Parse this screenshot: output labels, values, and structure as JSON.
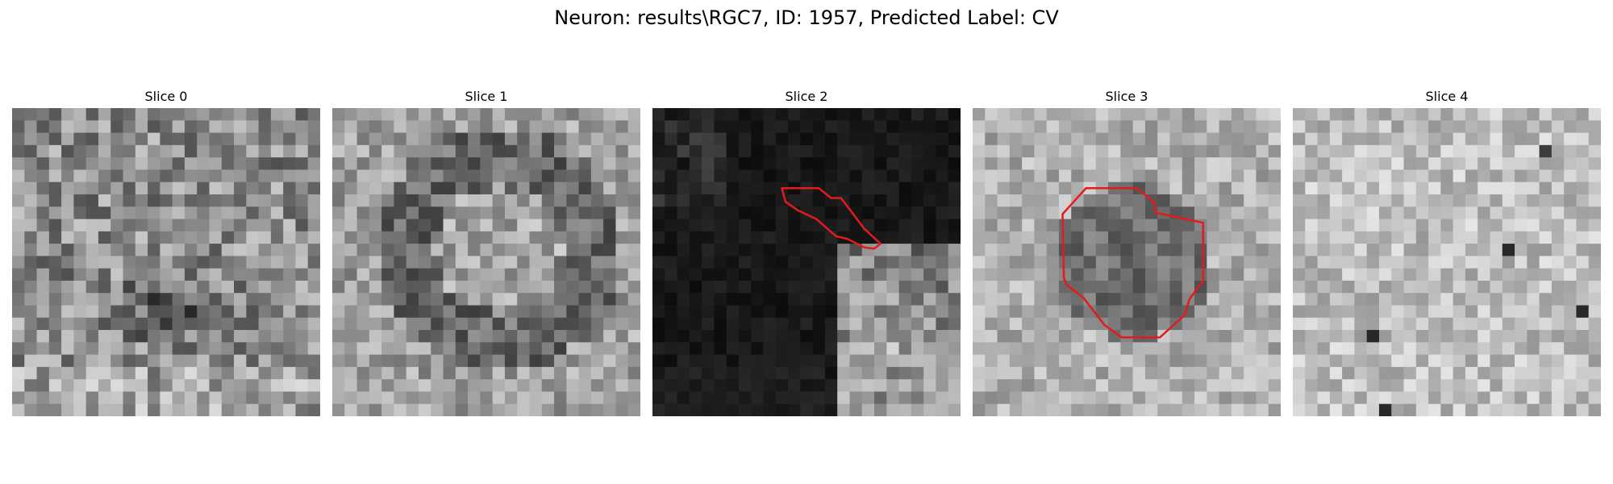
{
  "figure": {
    "title": "Neuron: results\\RGC7, ID: 1957, Predicted Label: CV"
  },
  "colors": {
    "background": "#ffffff",
    "contour": "#e41a1c"
  },
  "panels": [
    {
      "title": "Slice 0",
      "image": "grayscale-pixel-noise",
      "has_contour": false
    },
    {
      "title": "Slice 1",
      "image": "grayscale-pixel-noise",
      "has_contour": false
    },
    {
      "title": "Slice 2",
      "image": "dark-grayscale-with-bright-lower-right",
      "has_contour": true
    },
    {
      "title": "Slice 3",
      "image": "grayscale-pixel-noise-with-dark-center",
      "has_contour": true
    },
    {
      "title": "Slice 4",
      "image": "light-grayscale-pixel-noise",
      "has_contour": false
    }
  ]
}
